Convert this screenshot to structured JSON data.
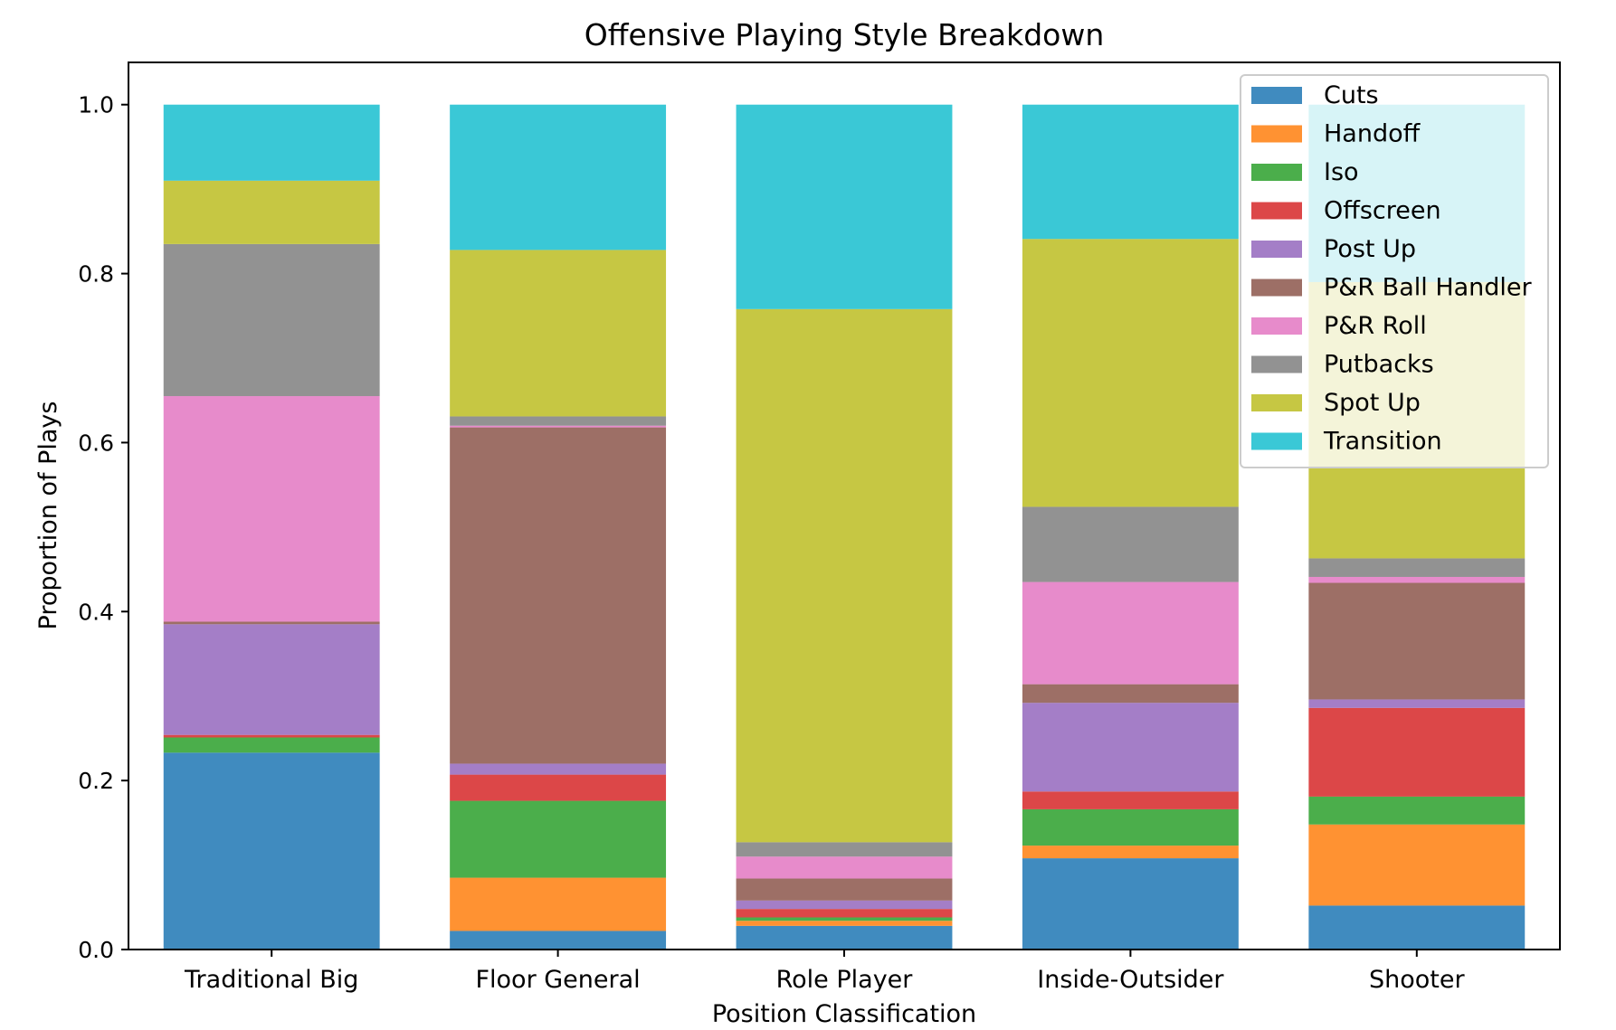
{
  "chart_data": {
    "type": "bar",
    "stacked": true,
    "title": "Offensive Playing Style Breakdown",
    "xlabel": "Position Classification",
    "ylabel": "Proportion of Plays",
    "ylim": [
      0,
      1.05
    ],
    "yticks": [
      "0.0",
      "0.2",
      "0.4",
      "0.6",
      "0.8",
      "1.0"
    ],
    "grid": false,
    "legend_position": "top-right",
    "categories": [
      "Traditional Big",
      "Floor General",
      "Role Player",
      "Inside-Outsider",
      "Shooter"
    ],
    "series": [
      {
        "name": "Cuts",
        "color": "#1f77b4",
        "values": [
          0.233,
          0.022,
          0.028,
          0.108,
          0.052
        ]
      },
      {
        "name": "Handoff",
        "color": "#ff7f0e",
        "values": [
          0.0,
          0.063,
          0.006,
          0.015,
          0.096
        ]
      },
      {
        "name": "Iso",
        "color": "#2ca02c",
        "values": [
          0.018,
          0.091,
          0.004,
          0.043,
          0.033
        ]
      },
      {
        "name": "Offscreen",
        "color": "#d62728",
        "values": [
          0.003,
          0.031,
          0.01,
          0.021,
          0.105
        ]
      },
      {
        "name": "Post Up",
        "color": "#9467bd",
        "values": [
          0.131,
          0.013,
          0.01,
          0.105,
          0.01
        ]
      },
      {
        "name": "P&R Ball Handler",
        "color": "#8c564b",
        "values": [
          0.003,
          0.398,
          0.026,
          0.022,
          0.138
        ]
      },
      {
        "name": "P&R Roll",
        "color": "#e377c2",
        "values": [
          0.267,
          0.002,
          0.026,
          0.121,
          0.007
        ]
      },
      {
        "name": "Putbacks",
        "color": "#7f7f7f",
        "values": [
          0.18,
          0.011,
          0.017,
          0.089,
          0.022
        ]
      },
      {
        "name": "Spot Up",
        "color": "#bcbd22",
        "values": [
          0.075,
          0.197,
          0.631,
          0.317,
          0.327
        ]
      },
      {
        "name": "Transition",
        "color": "#17becf",
        "values": [
          0.09,
          0.172,
          0.242,
          0.159,
          0.21
        ]
      }
    ]
  }
}
